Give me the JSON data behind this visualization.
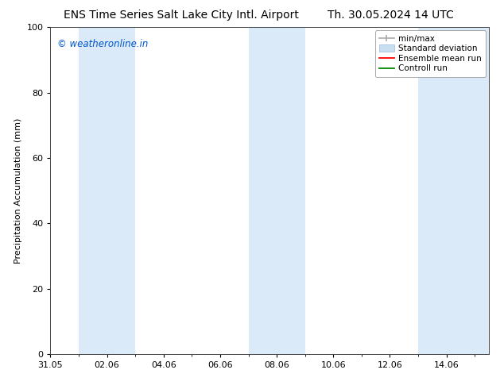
{
  "title_left": "ENS Time Series Salt Lake City Intl. Airport",
  "title_right": "Th. 30.05.2024 14 UTC",
  "ylabel": "Precipitation Accumulation (mm)",
  "ylim": [
    0,
    100
  ],
  "yticks": [
    0,
    20,
    40,
    60,
    80,
    100
  ],
  "xtick_positions": [
    0,
    2,
    4,
    6,
    8,
    10,
    12,
    14
  ],
  "xtick_labels": [
    "31.05",
    "02.06",
    "04.06",
    "06.06",
    "08.06",
    "10.06",
    "12.06",
    "14.06"
  ],
  "xlim": [
    0,
    15.5
  ],
  "watermark": "© weatheronline.in",
  "watermark_color": "#0055cc",
  "background_color": "#ffffff",
  "plot_bg_color": "#ffffff",
  "shaded_bands": [
    {
      "x_start": 1.0,
      "x_end": 3.0,
      "color": "#daeaf8"
    },
    {
      "x_start": 7.0,
      "x_end": 9.0,
      "color": "#daeaf8"
    },
    {
      "x_start": 13.0,
      "x_end": 15.5,
      "color": "#daeaf8"
    }
  ],
  "legend_entries": [
    {
      "label": "min/max",
      "color": "#aaaaaa",
      "type": "minmax"
    },
    {
      "label": "Standard deviation",
      "color": "#c8dff0",
      "type": "patch"
    },
    {
      "label": "Ensemble mean run",
      "color": "#ff0000",
      "type": "line"
    },
    {
      "label": "Controll run",
      "color": "#008800",
      "type": "line"
    }
  ],
  "title_fontsize": 10,
  "label_fontsize": 8,
  "tick_fontsize": 8,
  "legend_fontsize": 7.5,
  "watermark_fontsize": 8.5
}
